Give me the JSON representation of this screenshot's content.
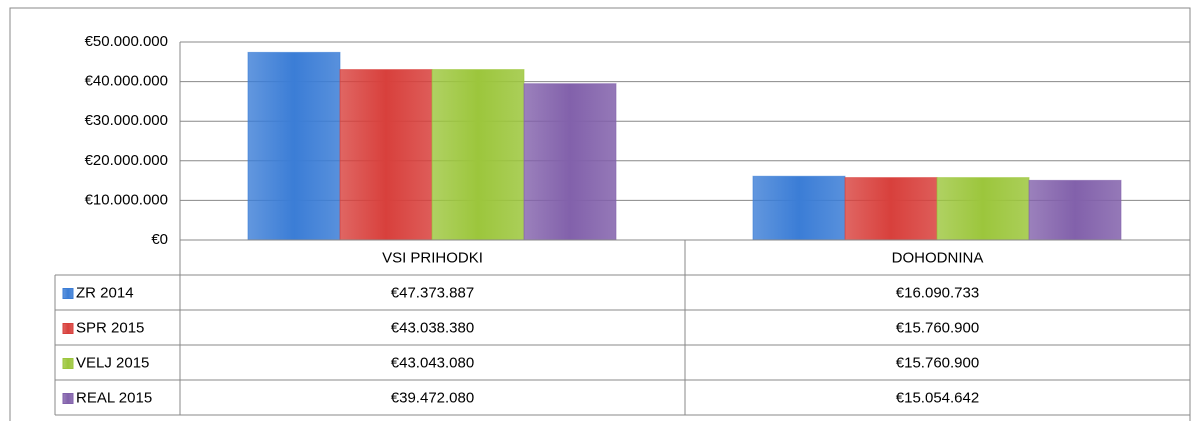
{
  "chart_data": {
    "type": "bar",
    "categories": [
      "VSI PRIHODKI",
      "DOHODNINA"
    ],
    "series": [
      {
        "name": "ZR 2014",
        "color": "#3b7dd6",
        "values": [
          47373887,
          16090733
        ],
        "value_labels": [
          "€47.373.887",
          "€16.090.733"
        ]
      },
      {
        "name": "SPR 2015",
        "color": "#d8403c",
        "values": [
          43038380,
          15760900
        ],
        "value_labels": [
          "€43.038.380",
          "€15.760.900"
        ]
      },
      {
        "name": "VELJ 2015",
        "color": "#9cc63c",
        "values": [
          43043080,
          15760900
        ],
        "value_labels": [
          "€43.043.080",
          "€15.760.900"
        ]
      },
      {
        "name": "REAL 2015",
        "color": "#8261ab",
        "values": [
          39472080,
          15054642
        ],
        "value_labels": [
          "€39.472.080",
          "€15.054.642"
        ]
      }
    ],
    "ylim": [
      0,
      50000000
    ],
    "yticks": [
      {
        "value": 0,
        "label": "€0"
      },
      {
        "value": 10000000,
        "label": "€10.000.000"
      },
      {
        "value": 20000000,
        "label": "€20.000.000"
      },
      {
        "value": 30000000,
        "label": "€30.000.000"
      },
      {
        "value": 40000000,
        "label": "€40.000.000"
      },
      {
        "value": 50000000,
        "label": "€50.000.000"
      }
    ],
    "grid": true
  }
}
